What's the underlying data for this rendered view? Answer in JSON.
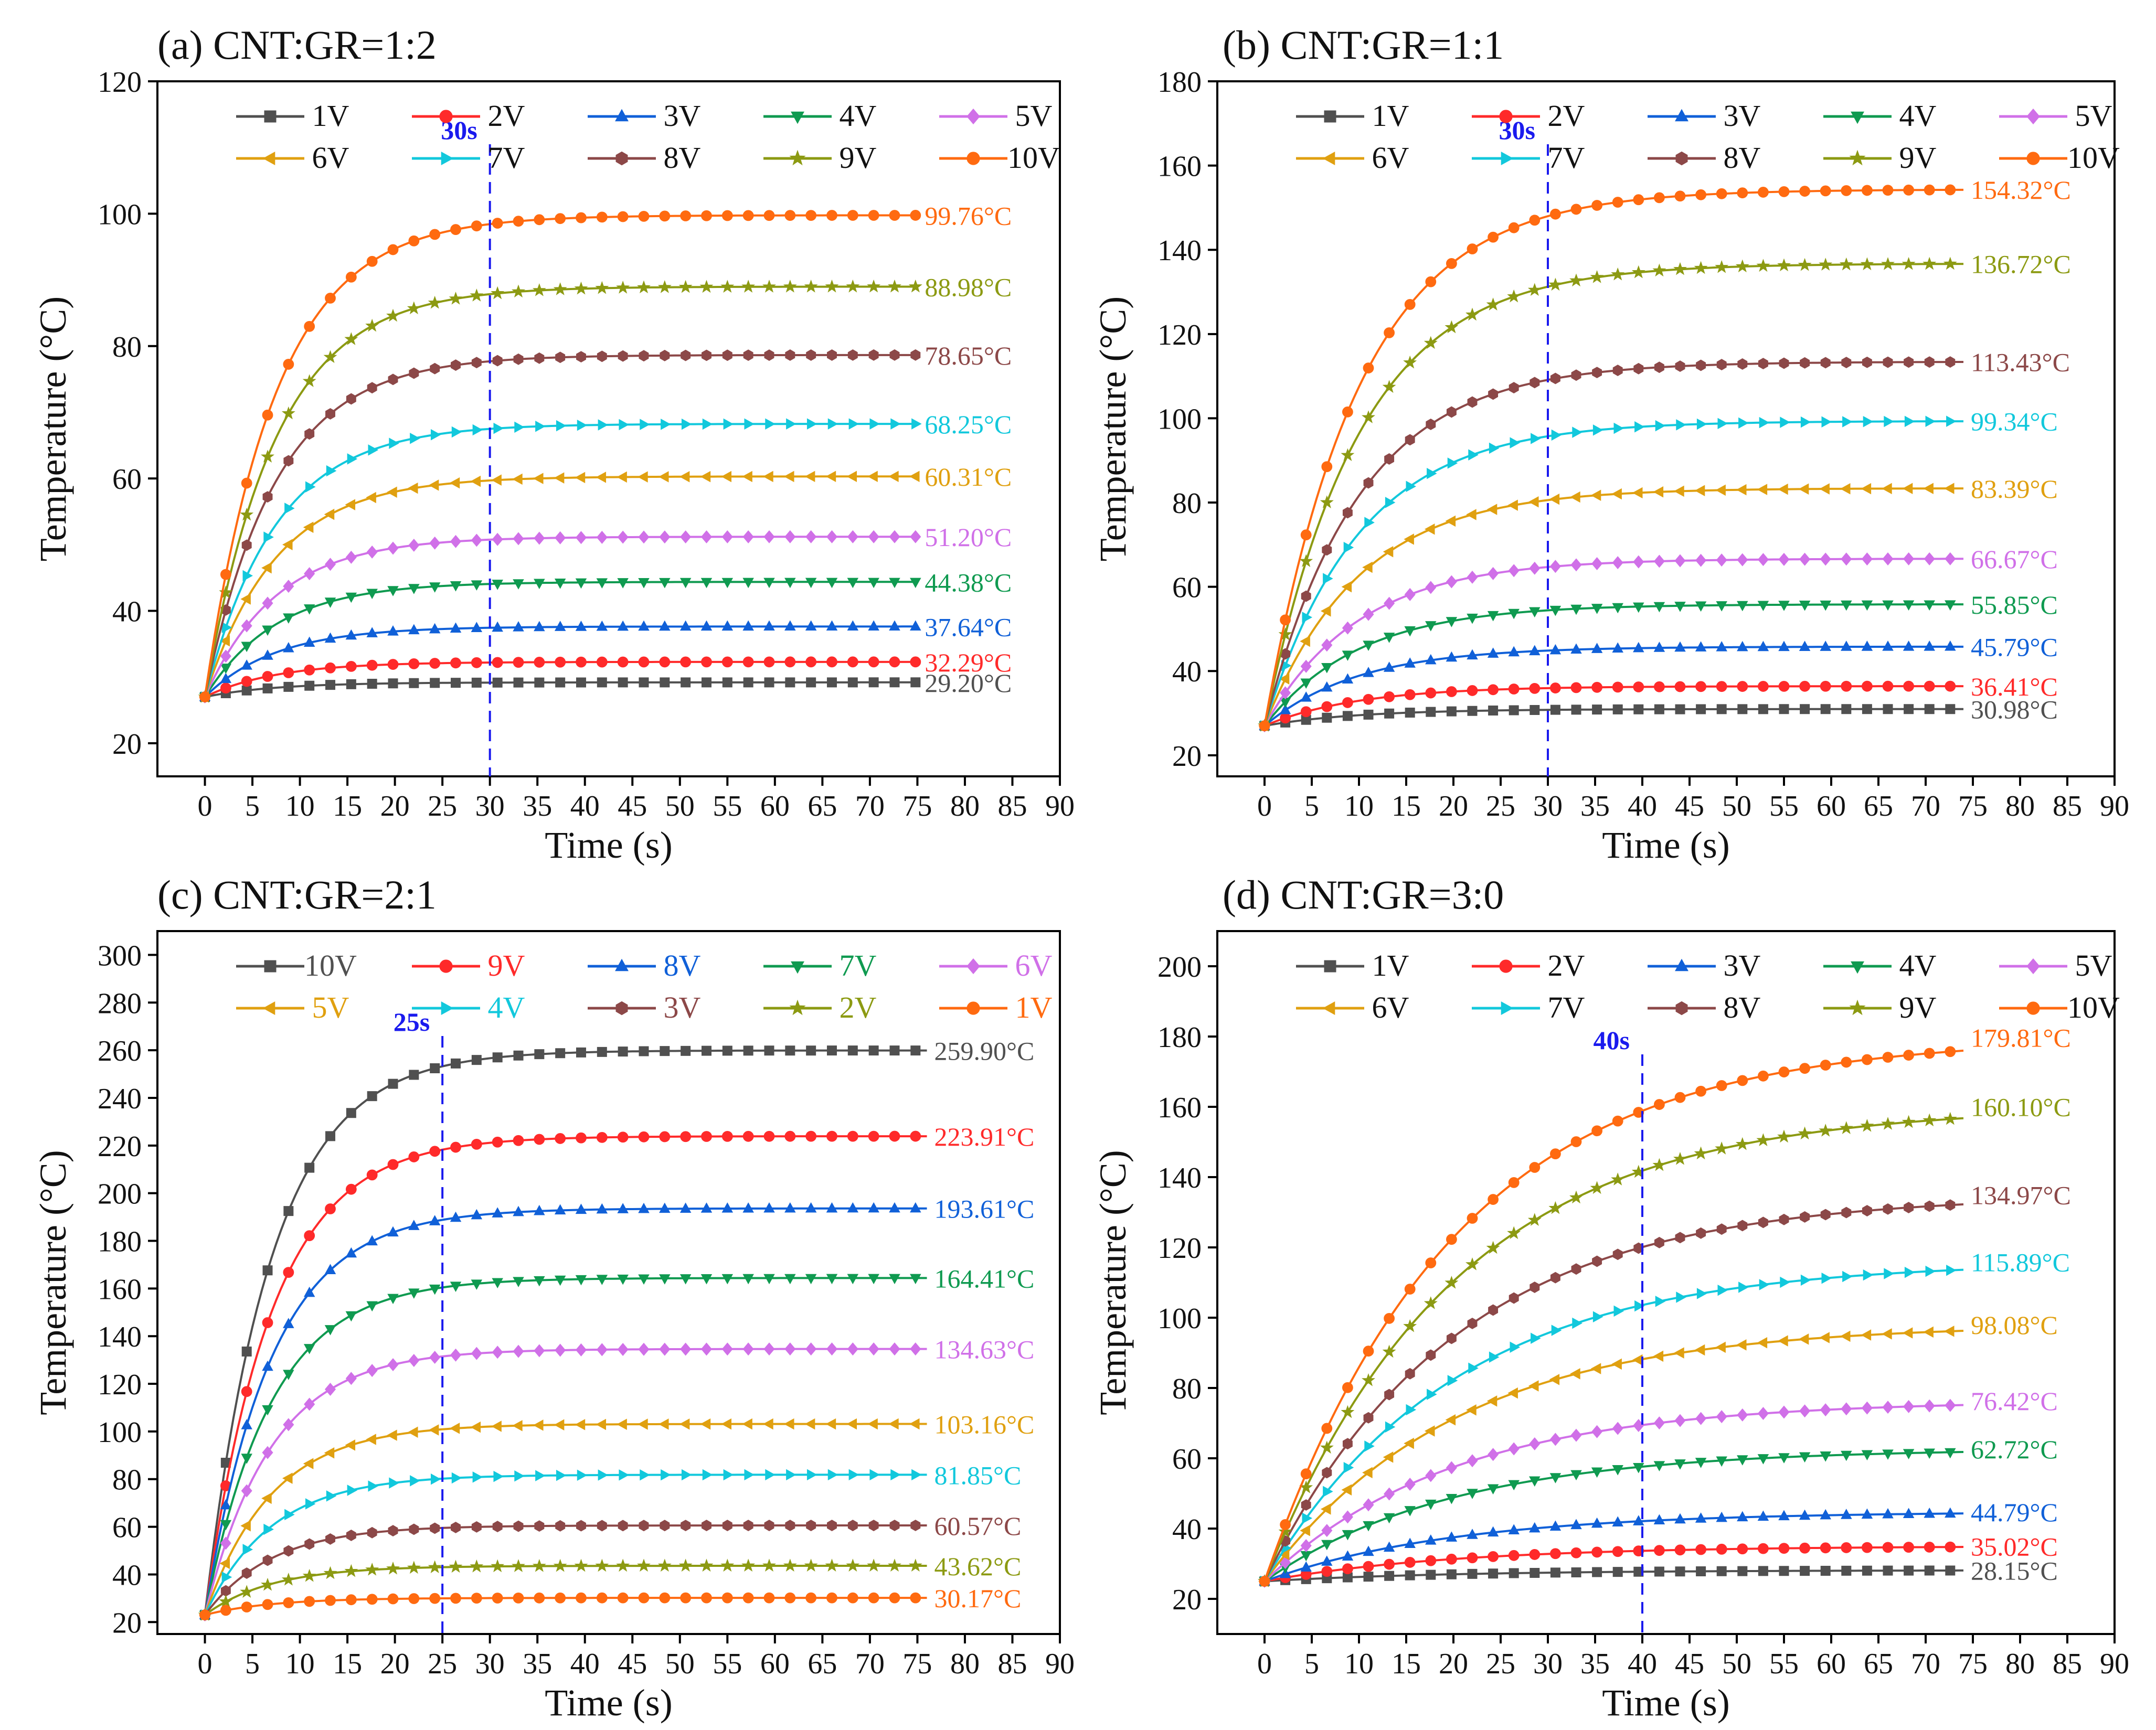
{
  "figure": {
    "description_free": true,
    "common": {
      "xlabel": "Time (s)",
      "ylabel": "Temperature (°C)",
      "xlim": [
        -5,
        90
      ],
      "xticks": [
        0,
        5,
        10,
        15,
        20,
        25,
        30,
        35,
        40,
        45,
        50,
        55,
        60,
        65,
        70,
        75,
        80,
        85,
        90
      ]
    },
    "colors": {
      "1V": "#505050",
      "2V": "#ff2a2a",
      "3V": "#1060d8",
      "4V": "#0f9a50",
      "5V": "#d070e8",
      "6V": "#e0a010",
      "7V": "#12c8dc",
      "8V": "#8c4848",
      "9V": "#8c9a12",
      "10V": "#ff6a10",
      "marker_line": "#1a1aee"
    }
  },
  "chart_data": [
    {
      "type": "line",
      "title": "(a) CNT:GR=1:2",
      "xlabel": "Time (s)",
      "ylabel": "Temperature (°C)",
      "xlim": [
        -5,
        90
      ],
      "ylim": [
        15,
        120
      ],
      "yticks": [
        20,
        40,
        60,
        80,
        100,
        120
      ],
      "start": 27,
      "tau": 7.5,
      "duration": 75,
      "marker_time": 30,
      "marker_label": "30s",
      "legend_order": [
        "1V",
        "2V",
        "3V",
        "4V",
        "5V",
        "6V",
        "7V",
        "8V",
        "9V",
        "10V"
      ],
      "series": [
        {
          "name": "1V",
          "marker": "square",
          "final": 29.2,
          "end_label": "29.20°C"
        },
        {
          "name": "2V",
          "marker": "circle",
          "final": 32.29,
          "end_label": "32.29°C"
        },
        {
          "name": "3V",
          "marker": "triangle-up",
          "final": 37.64,
          "end_label": "37.64°C"
        },
        {
          "name": "4V",
          "marker": "triangle-down",
          "final": 44.38,
          "end_label": "44.38°C"
        },
        {
          "name": "5V",
          "marker": "diamond",
          "final": 51.2,
          "end_label": "51.20°C"
        },
        {
          "name": "6V",
          "marker": "triangle-left",
          "final": 60.31,
          "end_label": "60.31°C"
        },
        {
          "name": "7V",
          "marker": "triangle-right",
          "final": 68.25,
          "end_label": "68.25°C"
        },
        {
          "name": "8V",
          "marker": "hexagon",
          "final": 78.65,
          "end_label": "78.65°C"
        },
        {
          "name": "9V",
          "marker": "star",
          "final": 88.98,
          "end_label": "88.98°C"
        },
        {
          "name": "10V",
          "marker": "circle",
          "final": 99.76,
          "end_label": "99.76°C"
        }
      ]
    },
    {
      "type": "line",
      "title": "(b) CNT:GR=1:1",
      "xlabel": "Time (s)",
      "ylabel": "Temperature (°C)",
      "xlim": [
        -5,
        90
      ],
      "ylim": [
        15,
        180
      ],
      "yticks": [
        20,
        40,
        60,
        80,
        100,
        120,
        140,
        160,
        180
      ],
      "start": 27,
      "tau": 10,
      "duration": 74,
      "marker_time": 30,
      "marker_label": "30s",
      "legend_order": [
        "1V",
        "2V",
        "3V",
        "4V",
        "5V",
        "6V",
        "7V",
        "8V",
        "9V",
        "10V"
      ],
      "series": [
        {
          "name": "1V",
          "marker": "square",
          "final": 30.98,
          "end_label": "30.98°C"
        },
        {
          "name": "2V",
          "marker": "circle",
          "final": 36.41,
          "end_label": "36.41°C"
        },
        {
          "name": "3V",
          "marker": "triangle-up",
          "final": 45.79,
          "end_label": "45.79°C"
        },
        {
          "name": "4V",
          "marker": "triangle-down",
          "final": 55.85,
          "end_label": "55.85°C"
        },
        {
          "name": "5V",
          "marker": "diamond",
          "final": 66.67,
          "end_label": "66.67°C"
        },
        {
          "name": "6V",
          "marker": "triangle-left",
          "final": 83.39,
          "end_label": "83.39°C"
        },
        {
          "name": "7V",
          "marker": "triangle-right",
          "final": 99.34,
          "end_label": "99.34°C"
        },
        {
          "name": "8V",
          "marker": "hexagon",
          "final": 113.43,
          "end_label": "113.43°C"
        },
        {
          "name": "9V",
          "marker": "star",
          "final": 136.72,
          "end_label": "136.72°C"
        },
        {
          "name": "10V",
          "marker": "circle",
          "final": 154.32,
          "end_label": "154.32°C"
        }
      ]
    },
    {
      "type": "line",
      "title": "(c) CNT:GR=2:1",
      "xlabel": "Time (s)",
      "ylabel": "Temperature (°C)",
      "xlim": [
        -5,
        90
      ],
      "ylim": [
        15,
        310
      ],
      "yticks": [
        20,
        40,
        60,
        80,
        100,
        120,
        140,
        160,
        180,
        200,
        220,
        240,
        260,
        280,
        300
      ],
      "start": 23,
      "tau": 7,
      "duration": 76,
      "marker_time": 25,
      "marker_label": "25s",
      "legend_order": [
        "10V",
        "9V",
        "8V",
        "7V",
        "6V",
        "5V",
        "4V",
        "3V",
        "2V",
        "1V"
      ],
      "series": [
        {
          "name": "10V",
          "color_key": "1V",
          "marker": "square",
          "final": 259.9,
          "end_label": "259.90°C"
        },
        {
          "name": "9V",
          "color_key": "2V",
          "marker": "circle",
          "final": 223.91,
          "end_label": "223.91°C"
        },
        {
          "name": "8V",
          "color_key": "3V",
          "marker": "triangle-up",
          "final": 193.61,
          "end_label": "193.61°C"
        },
        {
          "name": "7V",
          "color_key": "4V",
          "marker": "triangle-down",
          "final": 164.41,
          "end_label": "164.41°C"
        },
        {
          "name": "6V",
          "color_key": "5V",
          "marker": "diamond",
          "final": 134.63,
          "end_label": "134.63°C"
        },
        {
          "name": "5V",
          "color_key": "6V",
          "marker": "triangle-left",
          "final": 103.16,
          "end_label": "103.16°C"
        },
        {
          "name": "4V",
          "color_key": "7V",
          "marker": "triangle-right",
          "final": 81.85,
          "end_label": "81.85°C"
        },
        {
          "name": "3V",
          "color_key": "8V",
          "marker": "hexagon",
          "final": 60.57,
          "end_label": "60.57°C"
        },
        {
          "name": "2V",
          "color_key": "9V",
          "marker": "star",
          "final": 43.62,
          "end_label": "43.62°C"
        },
        {
          "name": "1V",
          "color_key": "10V",
          "marker": "circle",
          "final": 30.17,
          "end_label": "30.17°C"
        }
      ]
    },
    {
      "type": "line",
      "title": "(d) CNT:GR=3:0",
      "xlabel": "Time (s)",
      "ylabel": "Temperature (°C)",
      "xlim": [
        -5,
        90
      ],
      "ylim": [
        10,
        210
      ],
      "yticks": [
        20,
        40,
        60,
        80,
        100,
        120,
        140,
        160,
        180,
        200
      ],
      "start": 25,
      "tau": 20,
      "duration": 74,
      "marker_time": 40,
      "marker_label": "40s",
      "legend_order": [
        "1V",
        "2V",
        "3V",
        "4V",
        "5V",
        "6V",
        "7V",
        "8V",
        "9V",
        "10V"
      ],
      "series": [
        {
          "name": "1V",
          "marker": "square",
          "final": 28.15,
          "end_label": "28.15°C"
        },
        {
          "name": "2V",
          "marker": "circle",
          "final": 35.02,
          "end_label": "35.02°C"
        },
        {
          "name": "3V",
          "marker": "triangle-up",
          "final": 44.79,
          "end_label": "44.79°C"
        },
        {
          "name": "4V",
          "marker": "triangle-down",
          "final": 62.72,
          "end_label": "62.72°C"
        },
        {
          "name": "5V",
          "marker": "diamond",
          "final": 76.42,
          "end_label": "76.42°C"
        },
        {
          "name": "6V",
          "marker": "triangle-left",
          "final": 98.08,
          "end_label": "98.08°C"
        },
        {
          "name": "7V",
          "marker": "triangle-right",
          "final": 115.89,
          "end_label": "115.89°C"
        },
        {
          "name": "8V",
          "marker": "hexagon",
          "final": 134.97,
          "end_label": "134.97°C"
        },
        {
          "name": "9V",
          "marker": "star",
          "final": 160.1,
          "end_label": "160.10°C"
        },
        {
          "name": "10V",
          "marker": "circle",
          "final": 179.81,
          "end_label": "179.81°C"
        }
      ]
    }
  ]
}
